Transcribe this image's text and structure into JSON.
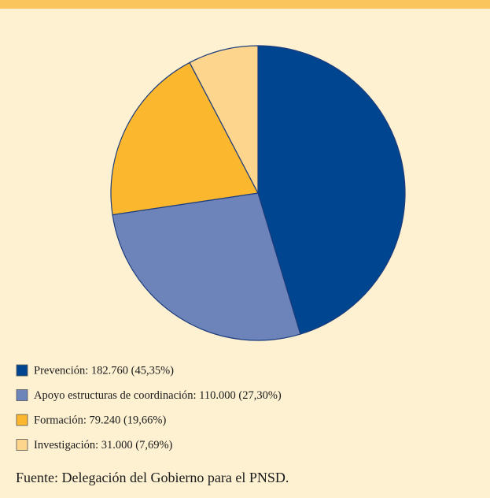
{
  "chart_data": {
    "type": "pie",
    "categories": [
      "Prevención: 182.760 (45,35%)",
      "Apoyo estructuras de coordinación: 110.000 (27,30%)",
      "Formación: 79.240 (19,66%)",
      "Investigación: 31.000 (7,69%)"
    ],
    "values": [
      182760,
      110000,
      79240,
      31000
    ],
    "colors": [
      "#00458f",
      "#6c84b9",
      "#fbb82f",
      "#fdd58d"
    ],
    "source": "Fuente: Delegación del Gobierno para el PNSD."
  }
}
